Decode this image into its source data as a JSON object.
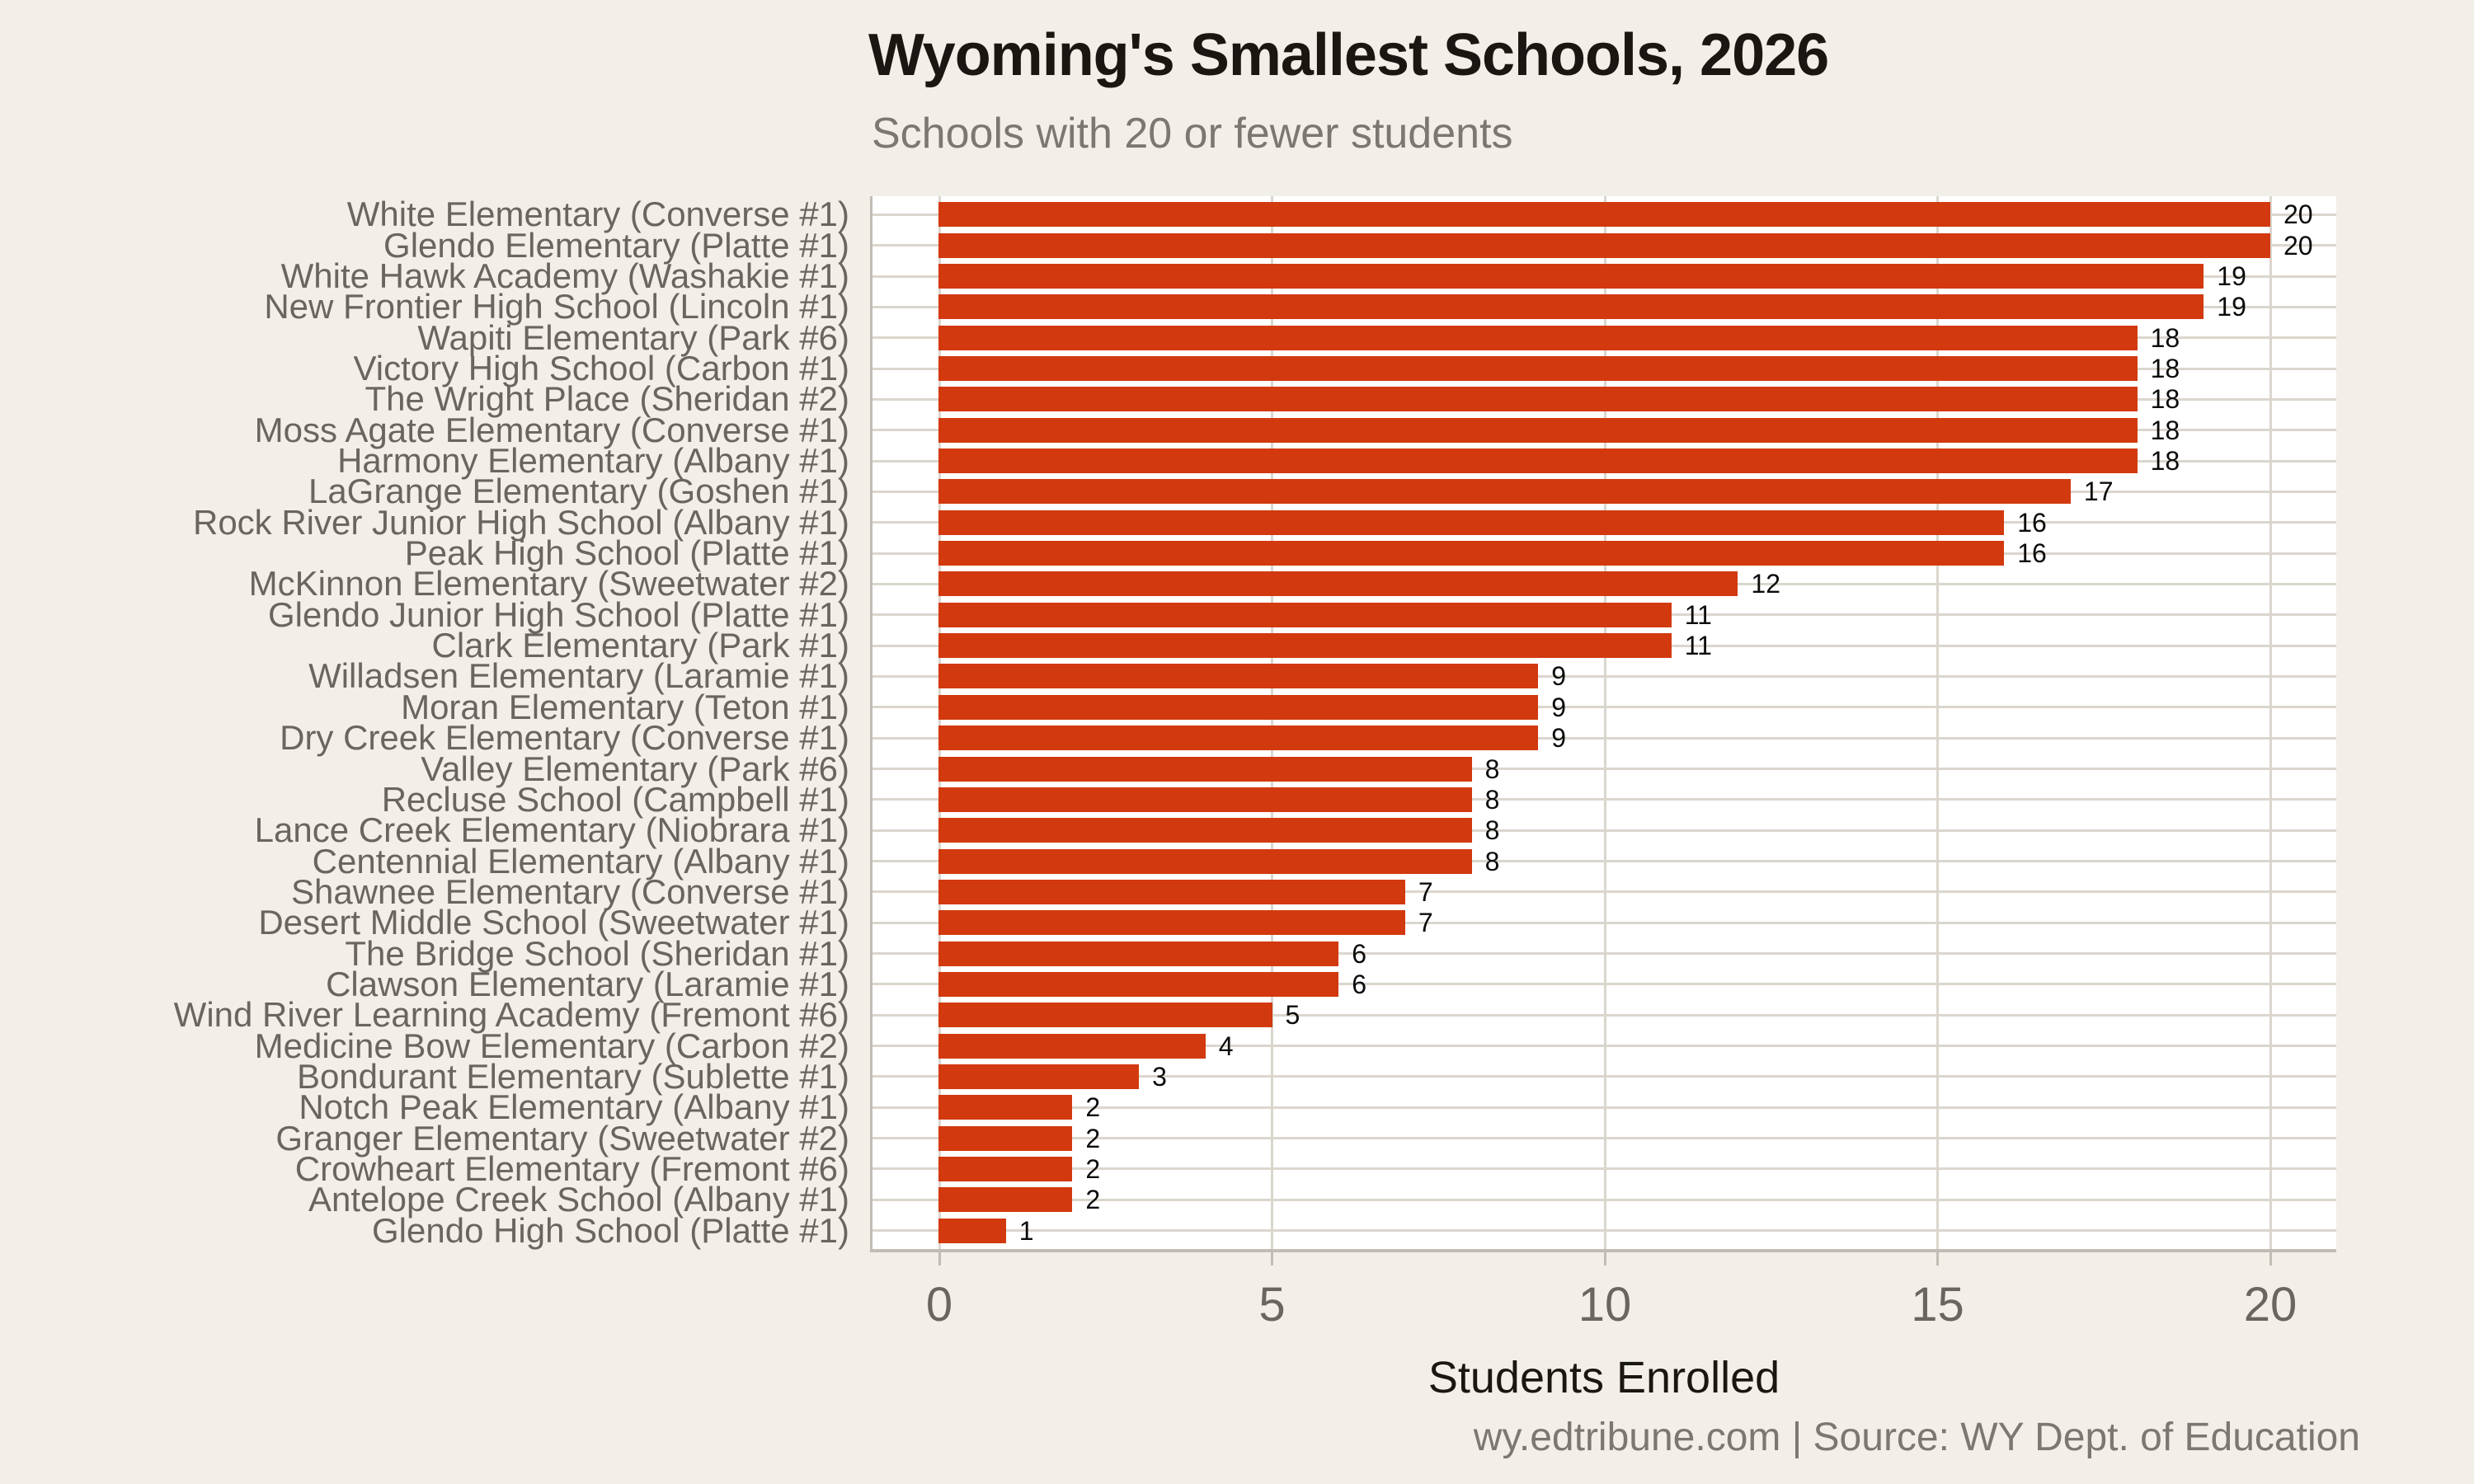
{
  "chart_data": {
    "type": "bar",
    "orientation": "horizontal",
    "title": "Wyoming's Smallest Schools, 2026",
    "subtitle": "Schools with 20 or fewer students",
    "xlabel": "Students Enrolled",
    "ylabel": "",
    "caption": "wy.edtribune.com | Source: WY Dept. of Education",
    "xlim": [
      -1,
      21
    ],
    "x_ticks": [
      0,
      5,
      10,
      15,
      20
    ],
    "grid": "major vertical gridlines at x ticks, horizontal gridline per category, white panel",
    "legend": "none",
    "value_labels": true,
    "categories": [
      "White Elementary (Converse #1)",
      "Glendo Elementary (Platte #1)",
      "White Hawk Academy (Washakie #1)",
      "New Frontier High School (Lincoln #1)",
      "Wapiti Elementary (Park #6)",
      "Victory High School (Carbon #1)",
      "The Wright Place (Sheridan #2)",
      "Moss Agate Elementary (Converse #1)",
      "Harmony Elementary (Albany #1)",
      "LaGrange Elementary (Goshen #1)",
      "Rock River Junior High School (Albany #1)",
      "Peak High School (Platte #1)",
      "McKinnon Elementary (Sweetwater #2)",
      "Glendo Junior High School (Platte #1)",
      "Clark Elementary (Park #1)",
      "Willadsen Elementary (Laramie #1)",
      "Moran Elementary (Teton #1)",
      "Dry Creek Elementary (Converse #1)",
      "Valley Elementary (Park #6)",
      "Recluse School (Campbell #1)",
      "Lance Creek Elementary (Niobrara #1)",
      "Centennial Elementary (Albany #1)",
      "Shawnee Elementary (Converse #1)",
      "Desert Middle School (Sweetwater #1)",
      "The Bridge School (Sheridan #1)",
      "Clawson Elementary (Laramie #1)",
      "Wind River Learning Academy (Fremont #6)",
      "Medicine Bow Elementary (Carbon #2)",
      "Bondurant Elementary (Sublette #1)",
      "Notch Peak Elementary (Albany #1)",
      "Granger Elementary (Sweetwater #2)",
      "Crowheart Elementary (Fremont #6)",
      "Antelope Creek School (Albany #1)",
      "Glendo High School (Platte #1)"
    ],
    "values": [
      20,
      20,
      19,
      19,
      18,
      18,
      18,
      18,
      18,
      17,
      16,
      16,
      12,
      11,
      11,
      9,
      9,
      9,
      8,
      8,
      8,
      8,
      7,
      7,
      6,
      6,
      5,
      4,
      3,
      2,
      2,
      2,
      2,
      1
    ]
  },
  "colors": {
    "background": "#F2EFE9",
    "panel": "#FFFFFF",
    "bar": "#D2390E",
    "gridline": "#DBD6CD",
    "axis_line": "#C2BDB4",
    "title_text": "#1A1611",
    "label_text": "#6A655E",
    "muted_text": "#7C7770",
    "value_text": "#0B0B0B"
  }
}
